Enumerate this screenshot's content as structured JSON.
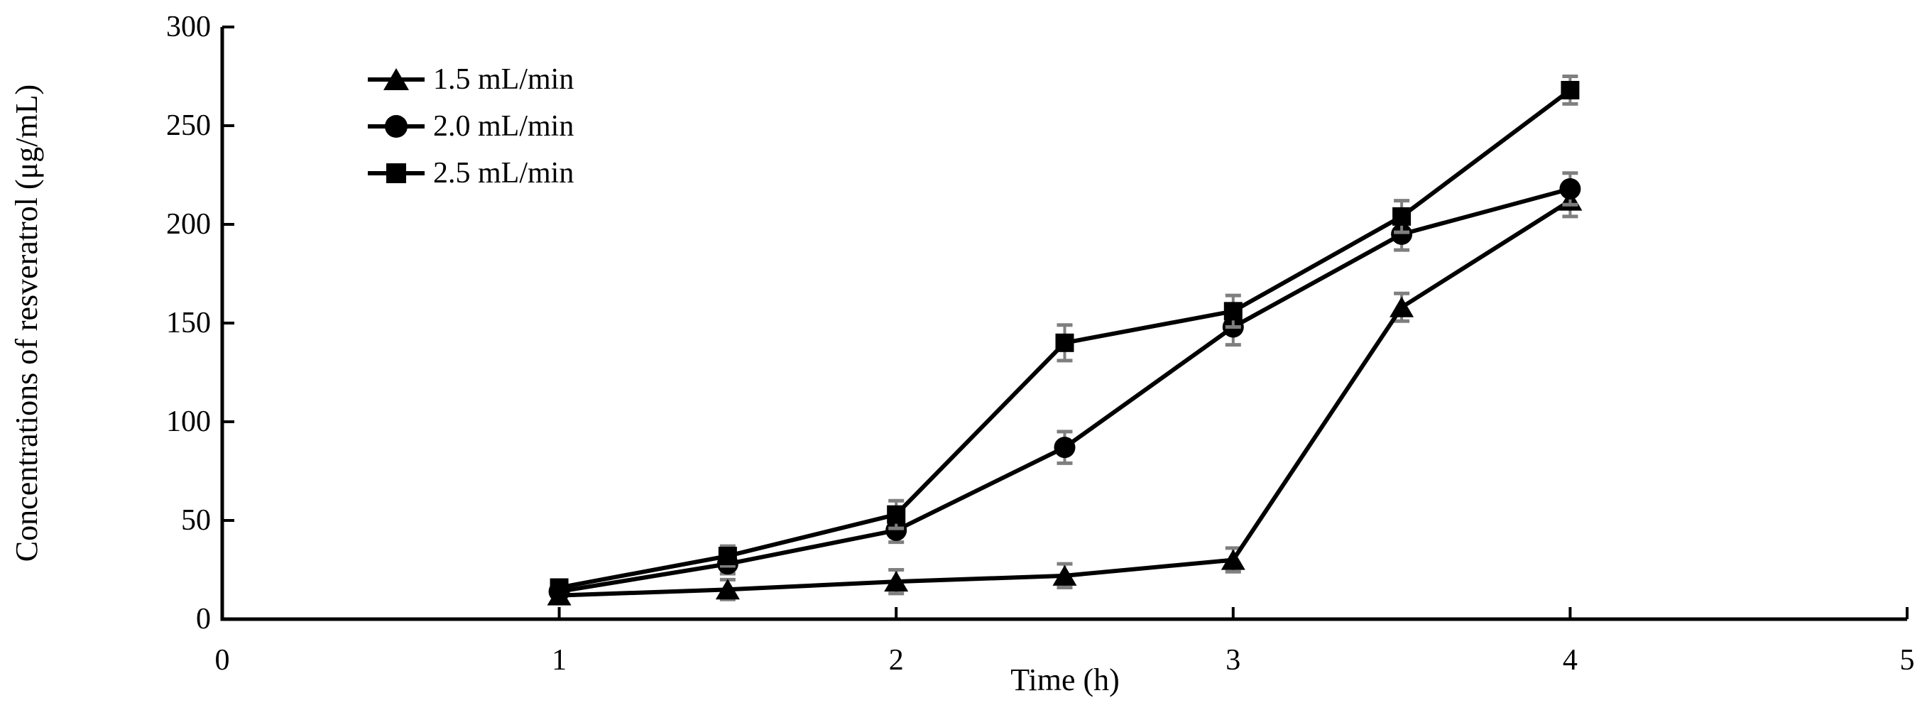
{
  "chart_data": {
    "type": "line",
    "title": "",
    "xlabel": "Time (h)",
    "ylabel": "Concentrations of resveratrol (μg/mL)",
    "x": [
      1,
      1.5,
      2,
      2.5,
      3,
      3.5,
      4
    ],
    "xlim": [
      0,
      5
    ],
    "ylim": [
      0,
      300
    ],
    "xticks": [
      0,
      1,
      2,
      3,
      4,
      5
    ],
    "yticks": [
      0,
      50,
      100,
      150,
      200,
      250,
      300
    ],
    "grid": false,
    "legend_position": "top-left-inside",
    "series": [
      {
        "name": "1.5 mL/min",
        "marker": "triangle",
        "values": [
          12,
          15,
          19,
          22,
          30,
          158,
          212
        ],
        "errors": [
          4,
          5,
          6,
          6,
          6,
          7,
          8
        ]
      },
      {
        "name": "2.0 mL/min",
        "marker": "circle",
        "values": [
          14,
          28,
          45,
          87,
          148,
          195,
          218
        ],
        "errors": [
          3,
          5,
          6,
          8,
          9,
          8,
          8
        ]
      },
      {
        "name": "2.5 mL/min",
        "marker": "square",
        "values": [
          16,
          32,
          53,
          140,
          156,
          204,
          268
        ],
        "errors": [
          3,
          5,
          7,
          9,
          8,
          8,
          7
        ]
      }
    ],
    "colors": {
      "series": "#000000",
      "error_bars": "#7f7f7f",
      "background": "#ffffff"
    }
  }
}
